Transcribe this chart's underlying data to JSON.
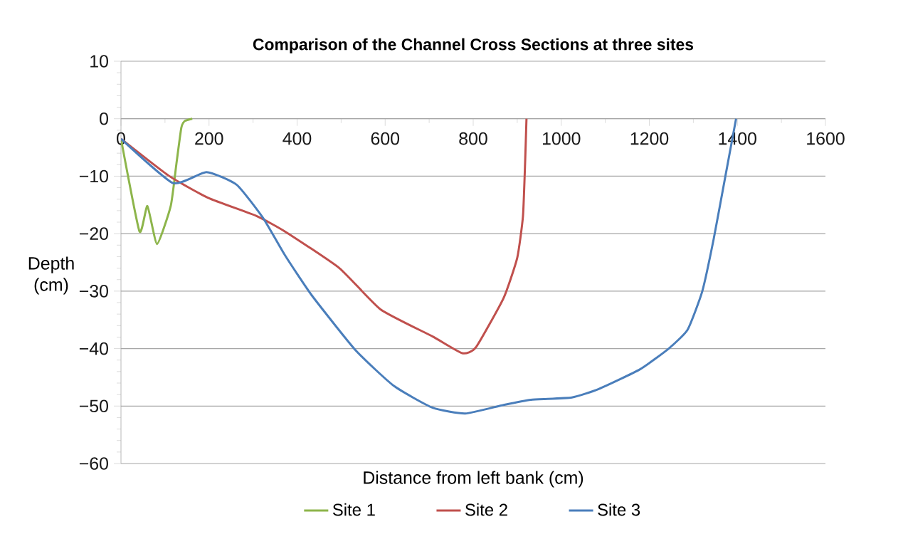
{
  "chart_data": {
    "type": "line",
    "title": "Comparison of the Channel Cross Sections at three sites",
    "xlabel": "Distance from left bank (cm)",
    "ylabel": "Depth (cm)",
    "xlim": [
      0,
      1600
    ],
    "xticks": [
      0,
      200,
      400,
      600,
      800,
      1000,
      1200,
      1400,
      1600
    ],
    "ylim": [
      -60,
      10
    ],
    "yticks": [
      {
        "value": -60,
        "label": "−60"
      },
      {
        "value": -50,
        "label": "−50"
      },
      {
        "value": -40,
        "label": "−40"
      },
      {
        "value": -30,
        "label": "−30"
      },
      {
        "value": -20,
        "label": "−20"
      },
      {
        "value": -10,
        "label": "−10"
      },
      0,
      10
    ],
    "grid": "y",
    "legend": "bottom",
    "series": [
      {
        "name": "Site 1",
        "color": "#8db54b",
        "x": [
          0,
          42,
          60,
          82,
          113,
          126,
          137,
          145,
          162
        ],
        "values": [
          -3.5,
          -19.6,
          -15.2,
          -21.8,
          -15.2,
          -7.8,
          -1.6,
          -0.4,
          0
        ]
      },
      {
        "name": "Site 2",
        "color": "#c0504d",
        "x": [
          0,
          108,
          199,
          307,
          372,
          496,
          590,
          708,
          775,
          806,
          869,
          900,
          913,
          918,
          921
        ],
        "values": [
          -3.5,
          -9.9,
          -13.8,
          -16.9,
          -19.6,
          -26,
          -33.2,
          -37.9,
          -40.8,
          -39.8,
          -31.2,
          -24.2,
          -17,
          -7.4,
          0
        ]
      },
      {
        "name": "Site 3",
        "color": "#4a7ebb",
        "x": [
          0,
          118,
          194,
          263,
          323,
          372,
          433,
          533,
          620,
          708,
          782,
          869,
          931,
          1024,
          1086,
          1179,
          1244,
          1287,
          1320,
          1346,
          1373,
          1397
        ],
        "values": [
          -3.5,
          -11.2,
          -9.3,
          -11.5,
          -17.3,
          -23.7,
          -30.7,
          -40.3,
          -46.5,
          -50.3,
          -51.3,
          -49.8,
          -48.9,
          -48.5,
          -47,
          -43.6,
          -40,
          -36.7,
          -30.1,
          -21,
          -9.9,
          0
        ]
      }
    ]
  }
}
